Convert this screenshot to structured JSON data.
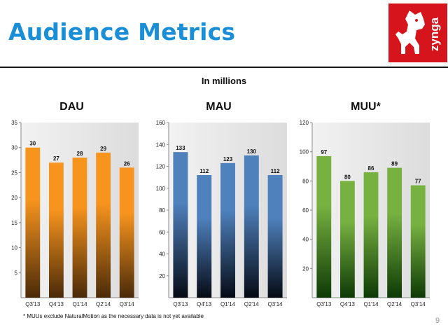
{
  "page": {
    "title": "Audience Metrics",
    "subtitle": "In millions",
    "footnote": "* MUUs exclude NaturalMotion as the necessary data is not yet available",
    "page_number": "9",
    "logo_text": "zynga",
    "colors": {
      "title": "#1a8fd8",
      "logo_bg": "#d6141c"
    }
  },
  "chart_data": [
    {
      "type": "bar",
      "title": "DAU",
      "categories": [
        "Q3'13",
        "Q4'13",
        "Q1'14",
        "Q2'14",
        "Q3'14"
      ],
      "values": [
        30,
        27,
        28,
        29,
        26
      ],
      "ylim": [
        0,
        35
      ],
      "yticks": [
        5,
        10,
        15,
        20,
        25,
        30,
        35
      ],
      "colors": {
        "top": "#f7941d",
        "bottom": "#4a2a08"
      },
      "grid": false
    },
    {
      "type": "bar",
      "title": "MAU",
      "categories": [
        "Q3'13",
        "Q4'13",
        "Q1'14",
        "Q2'14",
        "Q3'14"
      ],
      "values": [
        133,
        112,
        123,
        130,
        112
      ],
      "ylim": [
        0,
        160
      ],
      "yticks": [
        20,
        40,
        60,
        80,
        100,
        120,
        140,
        160
      ],
      "colors": {
        "top": "#4f81bd",
        "bottom": "#050a14"
      },
      "grid": false
    },
    {
      "type": "bar",
      "title": "MUU*",
      "categories": [
        "Q3'13",
        "Q4'13",
        "Q1'14",
        "Q2'14",
        "Q3'14"
      ],
      "values": [
        97,
        80,
        86,
        89,
        77
      ],
      "ylim": [
        0,
        120
      ],
      "yticks": [
        20,
        40,
        60,
        80,
        100,
        120
      ],
      "colors": {
        "top": "#77b140",
        "bottom": "#0e3a06"
      },
      "grid": false
    }
  ]
}
